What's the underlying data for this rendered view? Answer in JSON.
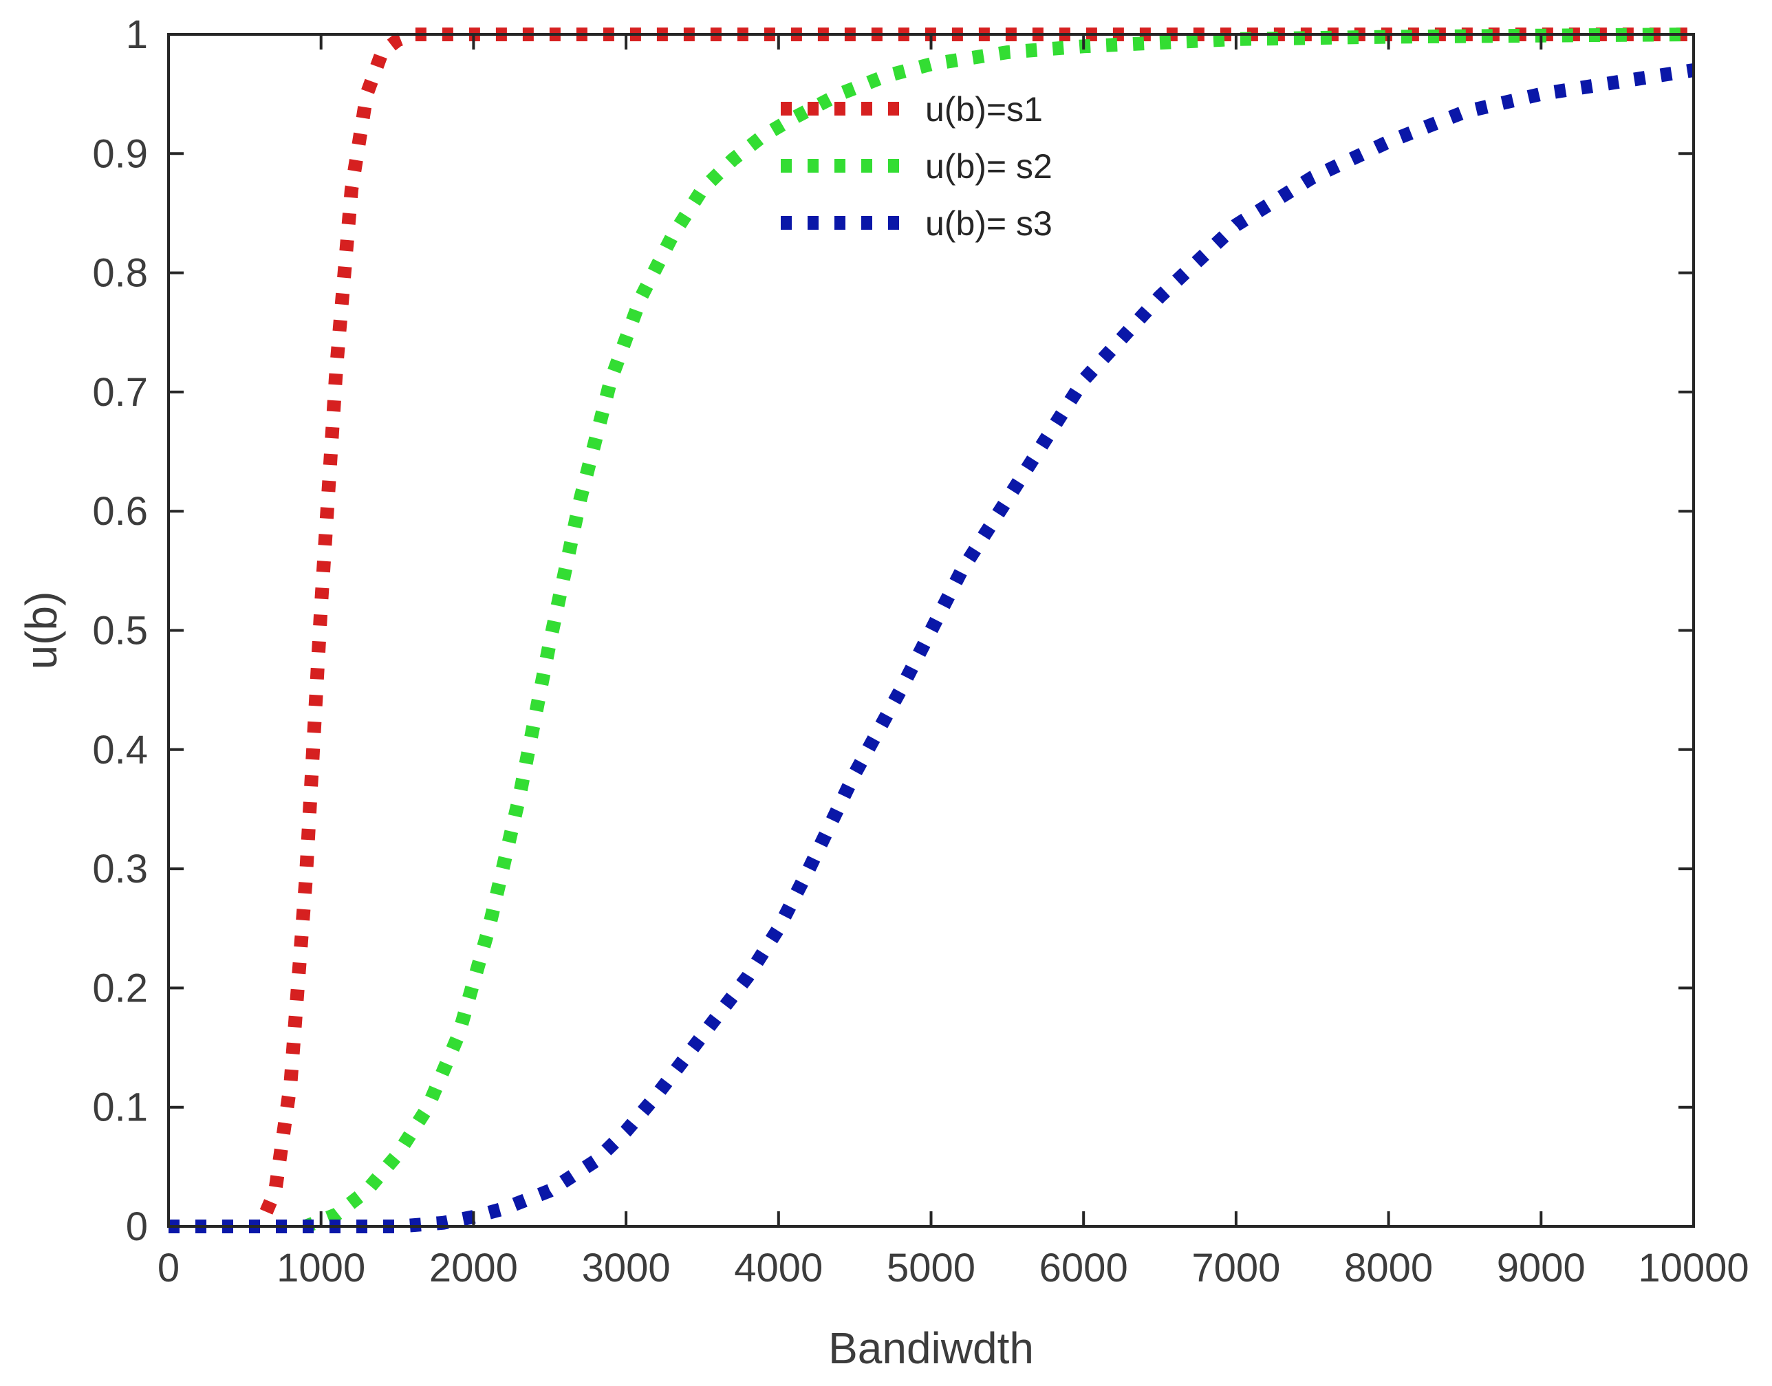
{
  "chart_data": {
    "type": "line",
    "title": "",
    "xlabel": "Bandiwdth",
    "ylabel": "u(b)",
    "xlim": [
      0,
      10000
    ],
    "ylim": [
      0,
      1
    ],
    "x_ticks": [
      0,
      1000,
      2000,
      3000,
      4000,
      5000,
      6000,
      7000,
      8000,
      9000,
      10000
    ],
    "x_tick_labels": [
      "0",
      "1000",
      "2000",
      "3000",
      "4000",
      "5000",
      "6000",
      "7000",
      "8000",
      "9000",
      "10000"
    ],
    "y_ticks": [
      0,
      0.1,
      0.2,
      0.3,
      0.4,
      0.5,
      0.6,
      0.7,
      0.8,
      0.9,
      1
    ],
    "y_tick_labels": [
      "0",
      "0.1",
      "0.2",
      "0.3",
      "0.4",
      "0.5",
      "0.6",
      "0.7",
      "0.8",
      "0.9",
      "1"
    ],
    "grid": false,
    "box": true,
    "legend_position": "top-center",
    "line_style": "dotted",
    "series": [
      {
        "name": "u(b)=s1",
        "color": "#d62020",
        "x": [
          0,
          200,
          400,
          600,
          700,
          800,
          900,
          1000,
          1100,
          1200,
          1300,
          1400,
          1500,
          1600,
          1800,
          2000,
          2500,
          3000,
          4000,
          5000,
          6000,
          7000,
          8000,
          9000,
          10000
        ],
        "y": [
          0,
          0,
          0,
          0,
          0.03,
          0.12,
          0.29,
          0.52,
          0.72,
          0.87,
          0.95,
          0.985,
          0.995,
          1,
          1,
          1,
          1,
          1,
          1,
          1,
          1,
          1,
          1,
          1,
          1
        ]
      },
      {
        "name": "u(b)= s2",
        "color": "#33dd33",
        "x": [
          0,
          500,
          900,
          1100,
          1300,
          1500,
          1700,
          1900,
          2100,
          2300,
          2500,
          2700,
          2900,
          3100,
          3300,
          3500,
          3700,
          3900,
          4100,
          4400,
          4700,
          5000,
          5500,
          6000,
          6500,
          7000,
          8000,
          9000,
          10000
        ],
        "y": [
          0,
          0,
          0,
          0.01,
          0.03,
          0.06,
          0.1,
          0.16,
          0.25,
          0.36,
          0.49,
          0.61,
          0.71,
          0.78,
          0.83,
          0.87,
          0.895,
          0.915,
          0.93,
          0.95,
          0.965,
          0.975,
          0.985,
          0.99,
          0.993,
          0.996,
          0.998,
          0.999,
          1
        ]
      },
      {
        "name": "u(b)= s3",
        "color": "#0a17a8",
        "x": [
          0,
          500,
          1000,
          1500,
          1800,
          2000,
          2200,
          2500,
          2800,
          3000,
          3200,
          3500,
          3800,
          4000,
          4200,
          4500,
          4800,
          5000,
          5200,
          5500,
          5800,
          6000,
          6500,
          7000,
          7500,
          8000,
          8500,
          9000,
          9500,
          10000
        ],
        "y": [
          0,
          0,
          0,
          0,
          0.003,
          0.008,
          0.015,
          0.03,
          0.055,
          0.08,
          0.11,
          0.16,
          0.21,
          0.25,
          0.3,
          0.38,
          0.45,
          0.5,
          0.55,
          0.61,
          0.67,
          0.71,
          0.78,
          0.84,
          0.88,
          0.91,
          0.935,
          0.95,
          0.96,
          0.97
        ]
      }
    ]
  }
}
